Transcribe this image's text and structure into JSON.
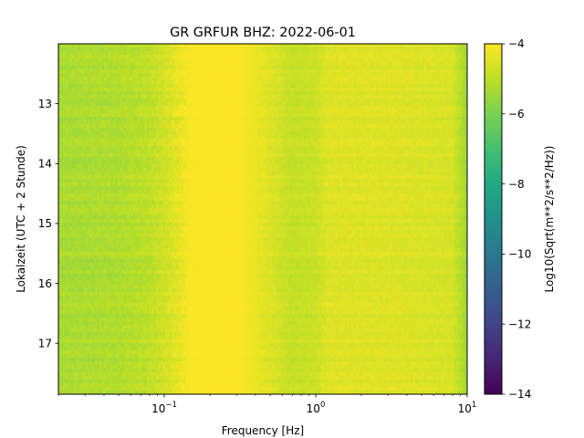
{
  "chart_data": {
    "type": "heatmap",
    "title": "GR GRFUR  BHZ: 2022-06-01",
    "xlabel": "Frequency [Hz]",
    "ylabel": "Lokalzeit (UTC + 2 Stunde)",
    "xscale": "log",
    "xlim": [
      0.02,
      10
    ],
    "ylim": [
      17.85,
      12.0
    ],
    "x_ticks": [
      {
        "value": 0.1,
        "base": "10",
        "exp": "−1"
      },
      {
        "value": 1,
        "base": "10",
        "exp": "0"
      },
      {
        "value": 10,
        "base": "10",
        "exp": "1"
      }
    ],
    "y_ticks": [
      {
        "value": 13,
        "label": "13"
      },
      {
        "value": 14,
        "label": "14"
      },
      {
        "value": 15,
        "label": "15"
      },
      {
        "value": 16,
        "label": "16"
      },
      {
        "value": 17,
        "label": "17"
      }
    ],
    "colorbar": {
      "label": "Log10(Sqrt(m**2/s**2/Hz))",
      "range": [
        -14,
        -4
      ],
      "colormap": "viridis",
      "ticks": [
        {
          "value": -4,
          "label": "−4"
        },
        {
          "value": -6,
          "label": "−6"
        },
        {
          "value": -8,
          "label": "−8"
        },
        {
          "value": -10,
          "label": "−10"
        },
        {
          "value": -12,
          "label": "−12"
        },
        {
          "value": -14,
          "label": "−14"
        }
      ]
    },
    "frequency_profile_log10_psd": [
      {
        "freq": 0.02,
        "value": -5.3
      },
      {
        "freq": 0.05,
        "value": -5.2
      },
      {
        "freq": 0.08,
        "value": -5.0
      },
      {
        "freq": 0.1,
        "value": -4.7
      },
      {
        "freq": 0.13,
        "value": -4.3
      },
      {
        "freq": 0.15,
        "value": -4.05
      },
      {
        "freq": 0.3,
        "value": -4.0
      },
      {
        "freq": 0.45,
        "value": -4.4
      },
      {
        "freq": 0.7,
        "value": -4.9
      },
      {
        "freq": 1.0,
        "value": -4.8
      },
      {
        "freq": 1.2,
        "value": -4.5
      },
      {
        "freq": 3.0,
        "value": -4.5
      },
      {
        "freq": 8.0,
        "value": -4.6
      },
      {
        "freq": 10.0,
        "value": -5.5
      }
    ],
    "grid": false
  }
}
